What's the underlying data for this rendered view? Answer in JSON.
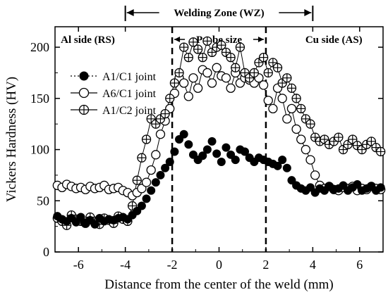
{
  "chart_data": {
    "type": "scatter",
    "xlabel": "Distance from the center of the weld (mm)",
    "ylabel": "Vickers Hardness (HV)",
    "xlim": [
      -7,
      7
    ],
    "ylim": [
      0,
      220
    ],
    "x_ticks": [
      -6,
      -4,
      -2,
      0,
      2,
      4,
      6
    ],
    "x_tick_labels": [
      "-6",
      "-4",
      "-2",
      "0",
      "2",
      "4",
      "6"
    ],
    "y_ticks": [
      0,
      50,
      100,
      150,
      200
    ],
    "y_tick_labels": [
      "0",
      "50",
      "100",
      "150",
      "200"
    ],
    "grid": false,
    "legend_position": "upper-left",
    "zones": {
      "welding_zone": {
        "label": "Welding Zone (WZ)",
        "from": -4,
        "to": 4
      },
      "probe_size": {
        "label": "Probe size",
        "from": -2,
        "to": 2
      },
      "al_side_label": "Al side (RS)",
      "cu_side_label": "Cu side (AS)"
    },
    "series": [
      {
        "name": "A1/C1 joint",
        "marker": "filled-circle",
        "connected": false,
        "x": [
          -6.9,
          -6.7,
          -6.5,
          -6.3,
          -6.1,
          -5.9,
          -5.7,
          -5.5,
          -5.3,
          -5.1,
          -4.9,
          -4.7,
          -4.5,
          -4.3,
          -4.1,
          -3.9,
          -3.7,
          -3.5,
          -3.3,
          -3.1,
          -2.9,
          -2.7,
          -2.5,
          -2.3,
          -2.1,
          -1.9,
          -1.7,
          -1.5,
          -1.3,
          -1.1,
          -0.9,
          -0.7,
          -0.5,
          -0.3,
          -0.1,
          0.1,
          0.3,
          0.5,
          0.7,
          0.9,
          1.1,
          1.3,
          1.5,
          1.7,
          1.9,
          2.1,
          2.3,
          2.5,
          2.7,
          2.9,
          3.1,
          3.3,
          3.5,
          3.7,
          3.9,
          4.1,
          4.3,
          4.5,
          4.7,
          4.9,
          5.1,
          5.3,
          5.5,
          5.7,
          5.9,
          6.1,
          6.3,
          6.5,
          6.7,
          6.9
        ],
        "values": [
          35,
          32,
          30,
          33,
          29,
          34,
          28,
          31,
          27,
          33,
          30,
          32,
          31,
          33,
          34,
          32,
          36,
          40,
          45,
          52,
          60,
          68,
          75,
          82,
          88,
          98,
          110,
          115,
          105,
          95,
          90,
          94,
          100,
          108,
          96,
          88,
          102,
          95,
          90,
          100,
          98,
          92,
          88,
          92,
          90,
          88,
          86,
          84,
          90,
          82,
          70,
          65,
          62,
          60,
          63,
          58,
          62,
          60,
          64,
          61,
          62,
          65,
          60,
          63,
          66,
          60,
          62,
          64,
          60,
          63
        ]
      },
      {
        "name": "A6/C1 joint",
        "marker": "open-circle",
        "connected": true,
        "x": [
          -6.9,
          -6.7,
          -6.5,
          -6.3,
          -6.1,
          -5.9,
          -5.7,
          -5.5,
          -5.3,
          -5.1,
          -4.9,
          -4.7,
          -4.5,
          -4.3,
          -4.1,
          -3.9,
          -3.7,
          -3.5,
          -3.3,
          -3.1,
          -2.9,
          -2.7,
          -2.5,
          -2.3,
          -2.1,
          -1.9,
          -1.7,
          -1.5,
          -1.3,
          -1.1,
          -0.9,
          -0.7,
          -0.5,
          -0.3,
          -0.1,
          0.1,
          0.3,
          0.5,
          0.7,
          0.9,
          1.1,
          1.3,
          1.5,
          1.7,
          1.9,
          2.1,
          2.3,
          2.5,
          2.7,
          2.9,
          3.1,
          3.3,
          3.5,
          3.7,
          3.9,
          4.1,
          4.3,
          4.5,
          4.7,
          4.9,
          5.1,
          5.3,
          5.5,
          5.7,
          5.9,
          6.1,
          6.3,
          6.5,
          6.7,
          6.9
        ],
        "values": [
          65,
          63,
          66,
          64,
          62,
          63,
          61,
          64,
          62,
          63,
          65,
          61,
          62,
          63,
          60,
          58,
          55,
          58,
          62,
          68,
          80,
          95,
          115,
          128,
          140,
          155,
          170,
          165,
          152,
          170,
          160,
          178,
          175,
          165,
          180,
          172,
          170,
          160,
          175,
          165,
          170,
          168,
          165,
          170,
          163,
          148,
          140,
          160,
          150,
          130,
          140,
          120,
          110,
          100,
          90,
          75,
          65,
          62,
          64,
          61,
          60,
          63,
          62,
          64,
          60,
          62,
          61,
          64,
          62,
          61
        ]
      },
      {
        "name": "A1/C2 joint",
        "marker": "crossed-circle",
        "connected": true,
        "x": [
          -6.9,
          -6.7,
          -6.5,
          -6.3,
          -6.1,
          -5.9,
          -5.7,
          -5.5,
          -5.3,
          -5.1,
          -4.9,
          -4.7,
          -4.5,
          -4.3,
          -4.1,
          -3.9,
          -3.7,
          -3.5,
          -3.3,
          -3.1,
          -2.9,
          -2.7,
          -2.5,
          -2.3,
          -2.1,
          -1.9,
          -1.7,
          -1.5,
          -1.3,
          -1.1,
          -0.9,
          -0.7,
          -0.5,
          -0.3,
          -0.1,
          0.1,
          0.3,
          0.5,
          0.7,
          0.9,
          1.1,
          1.3,
          1.5,
          1.7,
          1.9,
          2.1,
          2.3,
          2.5,
          2.7,
          2.9,
          3.1,
          3.3,
          3.5,
          3.7,
          3.9,
          4.1,
          4.3,
          4.5,
          4.7,
          4.9,
          5.1,
          5.3,
          5.5,
          5.7,
          5.9,
          6.1,
          6.3,
          6.5,
          6.7,
          6.9
        ],
        "values": [
          33,
          30,
          26,
          36,
          32,
          30,
          28,
          34,
          30,
          27,
          33,
          31,
          28,
          35,
          32,
          30,
          45,
          70,
          92,
          110,
          130,
          125,
          130,
          135,
          150,
          165,
          175,
          200,
          190,
          205,
          198,
          190,
          206,
          195,
          200,
          202,
          195,
          190,
          180,
          200,
          175,
          170,
          175,
          185,
          190,
          175,
          185,
          180,
          165,
          170,
          160,
          150,
          140,
          130,
          125,
          112,
          108,
          110,
          105,
          108,
          112,
          100,
          105,
          110,
          104,
          100,
          105,
          108,
          102,
          98
        ]
      }
    ]
  }
}
